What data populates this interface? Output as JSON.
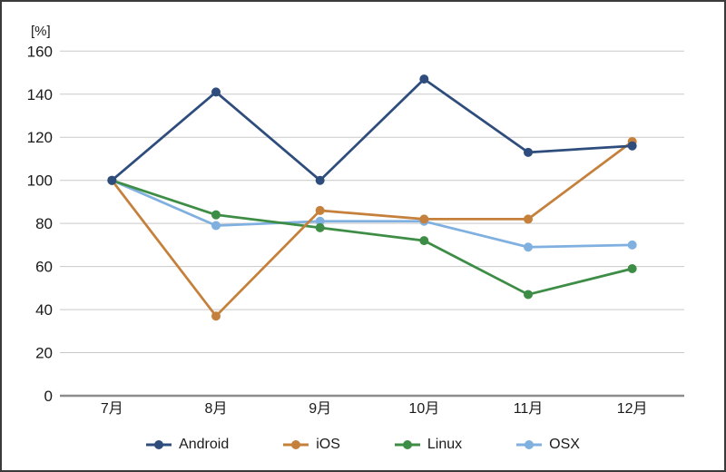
{
  "chart_data": {
    "type": "line",
    "title": "",
    "unit_label": "[%]",
    "xlabel": "",
    "ylabel": "[%]",
    "categories": [
      "7月",
      "8月",
      "9月",
      "10月",
      "11月",
      "12月"
    ],
    "series": [
      {
        "name": "Android",
        "color": "#2E4D7C",
        "values": [
          100,
          141,
          100,
          147,
          113,
          116
        ]
      },
      {
        "name": "iOS",
        "color": "#C5803B",
        "values": [
          100,
          37,
          86,
          82,
          82,
          118
        ]
      },
      {
        "name": "Linux",
        "color": "#3E8D46",
        "values": [
          100,
          84,
          78,
          72,
          47,
          59
        ]
      },
      {
        "name": "OSX",
        "color": "#7FB0DF",
        "values": [
          100,
          79,
          81,
          81,
          69,
          70
        ]
      }
    ],
    "ylim": [
      0,
      160
    ],
    "yticks": [
      0,
      20,
      40,
      60,
      80,
      100,
      120,
      140,
      160
    ],
    "grid": "horizontal",
    "legend_position": "bottom",
    "marker": "circle",
    "styles": {
      "gridline_color": "#C9C9C9",
      "axis_color": "#8C8C8C",
      "text_color": "#1A1A1A",
      "frame_border_color": "#3A3A3A",
      "background_color": "#FFFFFF"
    }
  }
}
